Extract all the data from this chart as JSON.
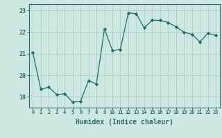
{
  "xlabel": "Humidex (Indice chaleur)",
  "x_values": [
    0,
    1,
    2,
    3,
    4,
    5,
    6,
    7,
    8,
    9,
    10,
    11,
    12,
    13,
    14,
    15,
    16,
    17,
    18,
    19,
    20,
    21,
    22,
    23
  ],
  "y_values": [
    21.05,
    19.35,
    19.45,
    19.1,
    19.15,
    18.75,
    18.8,
    19.75,
    19.6,
    22.15,
    21.15,
    21.2,
    22.9,
    22.85,
    22.2,
    22.55,
    22.55,
    22.45,
    22.25,
    22.0,
    21.9,
    21.55,
    21.95,
    21.85
  ],
  "line_color": "#1a6b60",
  "marker_color": "#1a6b60",
  "bg_color": "#cce8e0",
  "grid_color": "#aacfc8",
  "axis_color": "#336b60",
  "ylim": [
    18.5,
    23.3
  ],
  "yticks": [
    19,
    20,
    21,
    22,
    23
  ],
  "xlim": [
    -0.5,
    23.5
  ],
  "ylabel_color": "#336b60",
  "tick_color": "#336b60"
}
